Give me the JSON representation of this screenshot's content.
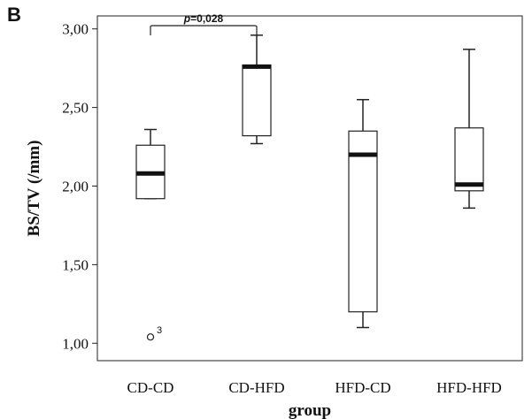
{
  "panel_label": "B",
  "chart_data": {
    "type": "boxplot",
    "xlabel": "group",
    "ylabel": "BS/TV  (/mm)",
    "categories": [
      "CD-CD",
      "CD-HFD",
      "HFD-CD",
      "HFD-HFD"
    ],
    "ylim": [
      0.9,
      3.1
    ],
    "yticks": [
      1.0,
      1.5,
      2.0,
      2.5,
      3.0
    ],
    "ytick_labels": [
      "1,00",
      "1,50",
      "2,00",
      "2,50",
      "3,00"
    ],
    "grid": false,
    "boxes": [
      {
        "category": "CD-CD",
        "min": 1.92,
        "q1": 1.92,
        "median": 2.08,
        "q3": 2.26,
        "max": 2.36,
        "outliers": [
          {
            "value": 1.04,
            "label": "3"
          }
        ]
      },
      {
        "category": "CD-HFD",
        "min": 2.27,
        "q1": 2.32,
        "median": 2.76,
        "q3": 2.77,
        "max": 2.96,
        "outliers": []
      },
      {
        "category": "HFD-CD",
        "min": 1.1,
        "q1": 1.2,
        "median": 2.2,
        "q3": 2.35,
        "max": 2.55,
        "outliers": []
      },
      {
        "category": "HFD-HFD",
        "min": 1.86,
        "q1": 1.97,
        "median": 2.01,
        "q3": 2.37,
        "max": 2.87,
        "outliers": []
      }
    ],
    "annotations": [
      {
        "type": "bracket",
        "from": "CD-CD",
        "to": "CD-HFD",
        "y": 3.02,
        "text_prefix": "p",
        "text": "=0,028"
      }
    ]
  }
}
